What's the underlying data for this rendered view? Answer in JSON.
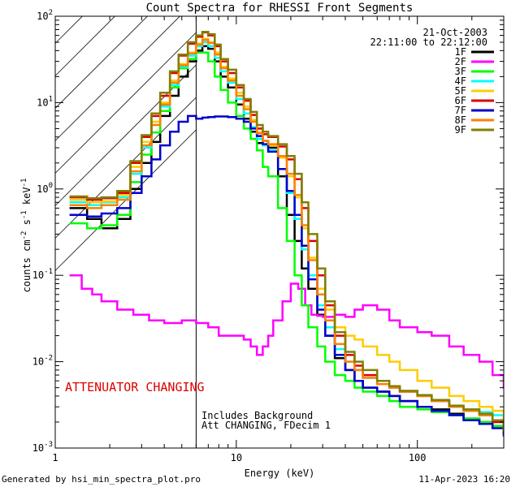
{
  "chart_data": {
    "type": "line",
    "title": "Count Spectra for RHESSI Front Segments",
    "xlabel": "Energy (keV)",
    "ylabel_parts": [
      "counts cm",
      "-2",
      " s",
      "-1",
      " keV",
      "-1"
    ],
    "xscale": "log",
    "yscale": "log",
    "xlim": [
      1,
      300
    ],
    "ylim": [
      0.001,
      100
    ],
    "x_ticks": [
      {
        "value": 1,
        "label": "1"
      },
      {
        "value": 10,
        "label": "10"
      },
      {
        "value": 100,
        "label": "100"
      }
    ],
    "y_ticks": [
      {
        "value": 0.001,
        "base": "10",
        "exp": "-3"
      },
      {
        "value": 0.01,
        "base": "10",
        "exp": "-2"
      },
      {
        "value": 0.1,
        "base": "10",
        "exp": "-1"
      },
      {
        "value": 1,
        "base": "10",
        "exp": "0"
      },
      {
        "value": 10,
        "base": "10",
        "exp": "1"
      },
      {
        "value": 100,
        "base": "10",
        "exp": "2"
      }
    ],
    "date": "21-Oct-2003",
    "time_range": "22:11:00 to 22:12:00",
    "attenuator_boundary_kev": 6,
    "annotations": {
      "attenuator": "ATTENUATOR CHANGING",
      "background": "Includes Background",
      "att_status": "Att CHANGING, FDecim  1"
    },
    "series": [
      {
        "name": "1F",
        "color": "#000000",
        "x": [
          1.2,
          1.5,
          1.8,
          2.2,
          2.6,
          3.0,
          3.4,
          3.8,
          4.3,
          4.8,
          5.4,
          6.0,
          6.5,
          7.0,
          7.6,
          8.2,
          9.0,
          10,
          11,
          12,
          13,
          14,
          15,
          17,
          19,
          21,
          23,
          25,
          28,
          31,
          35,
          40,
          45,
          50,
          60,
          70,
          80,
          100,
          120,
          150,
          180,
          220,
          260,
          300
        ],
        "y": [
          0.6,
          0.45,
          0.35,
          0.45,
          1.0,
          2.0,
          3.5,
          7,
          12,
          20,
          30,
          40,
          45,
          42,
          30,
          20,
          15,
          9.5,
          6.5,
          4.6,
          3.4,
          3.6,
          3.0,
          1.4,
          0.5,
          0.25,
          0.12,
          0.07,
          0.035,
          0.02,
          0.011,
          0.008,
          0.006,
          0.005,
          0.0045,
          0.004,
          0.0035,
          0.003,
          0.0028,
          0.0025,
          0.0022,
          0.002,
          0.0018,
          0.0015
        ]
      },
      {
        "name": "2F",
        "color": "#ff00ff",
        "x": [
          1.2,
          1.4,
          1.6,
          1.8,
          2.2,
          2.7,
          3.3,
          4.0,
          5.0,
          6.0,
          7.0,
          8.0,
          9.0,
          10,
          11,
          12,
          13,
          14,
          15,
          16,
          18,
          20,
          22,
          24,
          26,
          28,
          30,
          35,
          40,
          45,
          50,
          60,
          70,
          80,
          100,
          120,
          150,
          180,
          220,
          260,
          300
        ],
        "y": [
          0.1,
          0.07,
          0.06,
          0.05,
          0.04,
          0.035,
          0.03,
          0.028,
          0.03,
          0.028,
          0.025,
          0.02,
          0.02,
          0.02,
          0.018,
          0.015,
          0.012,
          0.015,
          0.02,
          0.03,
          0.05,
          0.08,
          0.07,
          0.045,
          0.035,
          0.034,
          0.033,
          0.035,
          0.033,
          0.04,
          0.045,
          0.04,
          0.03,
          0.025,
          0.022,
          0.02,
          0.015,
          0.012,
          0.01,
          0.007,
          0.005
        ]
      },
      {
        "name": "3F",
        "color": "#00ff00",
        "x": [
          1.2,
          1.5,
          1.8,
          2.2,
          2.6,
          3.0,
          3.4,
          3.8,
          4.3,
          4.8,
          5.4,
          6.0,
          6.5,
          7.0,
          7.6,
          8.2,
          9.0,
          10,
          11,
          12,
          13,
          14,
          15,
          17,
          19,
          21,
          23,
          25,
          28,
          31,
          35,
          40,
          45,
          50,
          60,
          70,
          80,
          100,
          120,
          150,
          180,
          220,
          260,
          300
        ],
        "y": [
          0.4,
          0.35,
          0.38,
          0.5,
          1.2,
          2.5,
          4.5,
          8,
          15,
          25,
          32,
          38,
          38,
          30,
          20,
          14,
          10,
          7,
          5,
          3.8,
          2.8,
          1.8,
          1.4,
          0.6,
          0.25,
          0.1,
          0.045,
          0.025,
          0.015,
          0.01,
          0.007,
          0.006,
          0.005,
          0.0045,
          0.004,
          0.0035,
          0.003,
          0.0028,
          0.0026,
          0.0024,
          0.0022,
          0.002,
          0.0018,
          0.0015
        ]
      },
      {
        "name": "4F",
        "color": "#00ffff",
        "x": [
          1.2,
          1.5,
          1.8,
          2.2,
          2.6,
          3.0,
          3.4,
          3.8,
          4.3,
          4.8,
          5.4,
          6.0,
          6.5,
          7.0,
          7.6,
          8.2,
          9.0,
          10,
          11,
          12,
          13,
          14,
          15,
          17,
          19,
          21,
          23,
          25,
          28,
          31,
          35,
          40,
          45,
          50,
          60,
          70,
          80,
          100,
          120,
          150,
          180,
          220,
          260,
          300
        ],
        "y": [
          0.7,
          0.65,
          0.7,
          0.8,
          1.5,
          3,
          5.5,
          9,
          16,
          26,
          35,
          45,
          50,
          45,
          33,
          23,
          17,
          11,
          7.5,
          5.2,
          3.8,
          3.2,
          2.8,
          1.7,
          0.9,
          0.45,
          0.2,
          0.1,
          0.045,
          0.025,
          0.014,
          0.01,
          0.008,
          0.0065,
          0.0055,
          0.005,
          0.0045,
          0.004,
          0.0035,
          0.003,
          0.0028,
          0.0026,
          0.0024,
          0.002
        ]
      },
      {
        "name": "5F",
        "color": "#ffcc00",
        "x": [
          1.2,
          1.5,
          1.8,
          2.2,
          2.6,
          3.0,
          3.4,
          3.8,
          4.3,
          4.8,
          5.4,
          6.0,
          6.5,
          7.0,
          7.6,
          8.2,
          9.0,
          10,
          11,
          12,
          13,
          14,
          15,
          17,
          19,
          21,
          23,
          25,
          28,
          31,
          35,
          40,
          45,
          50,
          60,
          70,
          80,
          100,
          120,
          150,
          180,
          220,
          260,
          300
        ],
        "y": [
          0.75,
          0.7,
          0.72,
          0.85,
          1.8,
          3.5,
          6,
          10,
          18,
          28,
          38,
          48,
          55,
          50,
          38,
          26,
          19,
          13,
          9,
          6.3,
          4.5,
          3.6,
          3.2,
          2.3,
          1.4,
          0.8,
          0.35,
          0.16,
          0.07,
          0.04,
          0.025,
          0.02,
          0.018,
          0.015,
          0.012,
          0.01,
          0.008,
          0.006,
          0.005,
          0.004,
          0.0035,
          0.003,
          0.0027,
          0.0022
        ]
      },
      {
        "name": "6F",
        "color": "#dd0000",
        "x": [
          1.2,
          1.5,
          1.8,
          2.2,
          2.6,
          3.0,
          3.4,
          3.8,
          4.3,
          4.8,
          5.4,
          6.0,
          6.5,
          7.0,
          7.6,
          8.2,
          9.0,
          10,
          11,
          12,
          13,
          14,
          15,
          17,
          19,
          21,
          23,
          25,
          28,
          31,
          35,
          40,
          45,
          50,
          60,
          70,
          80,
          100,
          120,
          150,
          180,
          220,
          260,
          300
        ],
        "y": [
          0.8,
          0.75,
          0.78,
          0.9,
          2,
          4,
          7,
          12,
          22,
          35,
          48,
          58,
          65,
          60,
          45,
          30,
          22,
          15,
          10.5,
          7.2,
          5,
          4.3,
          4.0,
          3.1,
          2.2,
          1.3,
          0.6,
          0.25,
          0.1,
          0.045,
          0.02,
          0.012,
          0.009,
          0.007,
          0.0055,
          0.005,
          0.0045,
          0.004,
          0.0035,
          0.003,
          0.0027,
          0.0024,
          0.002,
          0.0015
        ]
      },
      {
        "name": "7F",
        "color": "#0000cc",
        "x": [
          1.2,
          1.5,
          1.8,
          2.2,
          2.6,
          3.0,
          3.4,
          3.8,
          4.3,
          4.8,
          5.4,
          6.0,
          6.5,
          7.0,
          7.6,
          8.2,
          9.0,
          10,
          11,
          12,
          13,
          14,
          15,
          17,
          19,
          21,
          23,
          25,
          28,
          31,
          35,
          40,
          45,
          50,
          60,
          70,
          80,
          100,
          120,
          150,
          180,
          220,
          260,
          300
        ],
        "y": [
          0.5,
          0.48,
          0.52,
          0.6,
          0.9,
          1.4,
          2.2,
          3.2,
          4.6,
          6,
          7,
          6.5,
          6.7,
          6.8,
          6.9,
          6.9,
          6.8,
          6.5,
          6,
          5,
          4.1,
          3.3,
          2.7,
          1.7,
          0.95,
          0.5,
          0.22,
          0.09,
          0.04,
          0.02,
          0.012,
          0.008,
          0.006,
          0.005,
          0.0045,
          0.004,
          0.0035,
          0.003,
          0.0027,
          0.0024,
          0.0021,
          0.0019,
          0.0017,
          0.0014
        ]
      },
      {
        "name": "8F",
        "color": "#ff8000",
        "x": [
          1.2,
          1.5,
          1.8,
          2.2,
          2.6,
          3.0,
          3.4,
          3.8,
          4.3,
          4.8,
          5.4,
          6.0,
          6.5,
          7.0,
          7.6,
          8.2,
          9.0,
          10,
          11,
          12,
          13,
          14,
          15,
          17,
          19,
          21,
          23,
          25,
          28,
          31,
          35,
          40,
          45,
          50,
          60,
          70,
          80,
          100,
          120,
          150,
          180,
          220,
          260,
          300
        ],
        "y": [
          0.65,
          0.6,
          0.65,
          0.75,
          1.6,
          3.2,
          5.5,
          9.5,
          17,
          27,
          37,
          47,
          53,
          49,
          36,
          25,
          18,
          12,
          8.4,
          6,
          4.4,
          3.6,
          3.3,
          2.4,
          1.5,
          0.85,
          0.38,
          0.15,
          0.06,
          0.03,
          0.016,
          0.01,
          0.008,
          0.0065,
          0.0055,
          0.005,
          0.0045,
          0.004,
          0.0035,
          0.003,
          0.0027,
          0.0024,
          0.0021,
          0.0017
        ]
      },
      {
        "name": "9F",
        "color": "#808000",
        "x": [
          1.2,
          1.5,
          1.8,
          2.2,
          2.6,
          3.0,
          3.4,
          3.8,
          4.3,
          4.8,
          5.4,
          6.0,
          6.5,
          7.0,
          7.6,
          8.2,
          9.0,
          10,
          11,
          12,
          13,
          14,
          15,
          17,
          19,
          21,
          23,
          25,
          28,
          31,
          35,
          40,
          45,
          50,
          60,
          70,
          80,
          100,
          120,
          150,
          180,
          220,
          260,
          300
        ],
        "y": [
          0.82,
          0.78,
          0.8,
          0.95,
          2.1,
          4.2,
          7.5,
          13,
          23,
          36,
          50,
          60,
          66,
          62,
          47,
          32,
          24,
          16,
          11,
          7.8,
          5.5,
          4.6,
          4.1,
          3.3,
          2.4,
          1.5,
          0.7,
          0.3,
          0.12,
          0.05,
          0.022,
          0.013,
          0.01,
          0.008,
          0.006,
          0.0052,
          0.0046,
          0.0041,
          0.0036,
          0.0031,
          0.0028,
          0.0025,
          0.0021,
          0.0016
        ]
      }
    ]
  },
  "footer": {
    "generated": "Generated by hsi_min_spectra_plot.pro",
    "timestamp": "11-Apr-2023 16:20"
  }
}
